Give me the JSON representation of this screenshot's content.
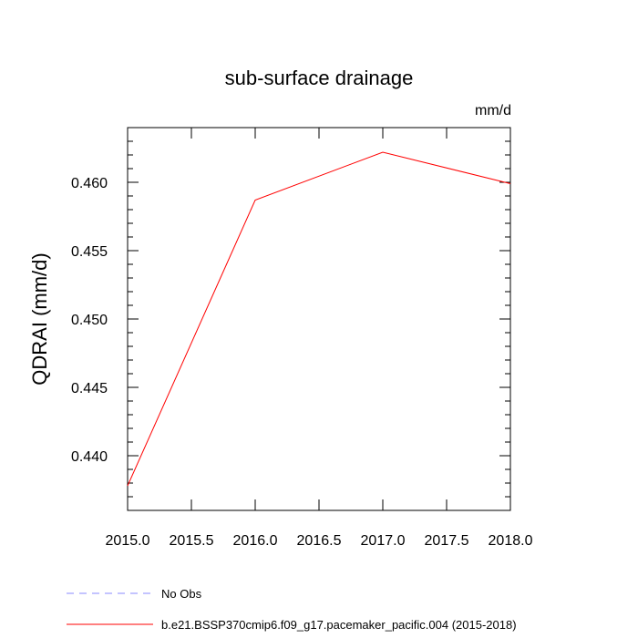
{
  "chart_data": {
    "type": "line",
    "title": "sub-surface drainage",
    "units_label": "mm/d",
    "ylabel": "QDRAI  (mm/d)",
    "xlabel": "",
    "xlim": [
      2015.0,
      2018.0
    ],
    "ylim": [
      0.436,
      0.464
    ],
    "xticks": [
      2015.0,
      2015.5,
      2016.0,
      2016.5,
      2017.0,
      2017.5,
      2018.0
    ],
    "xtick_labels": [
      "2015.0",
      "2015.5",
      "2016.0",
      "2016.5",
      "2017.0",
      "2017.5",
      "2018.0"
    ],
    "yticks": [
      0.44,
      0.445,
      0.45,
      0.455,
      0.46
    ],
    "ytick_labels": [
      "0.440",
      "0.445",
      "0.450",
      "0.455",
      "0.460"
    ],
    "grid": false,
    "legend_position": "bottom",
    "series": [
      {
        "name": "b.e21.BSSP370cmip6.f09_g17.pacemaker_pacific.004 (2015-2018)",
        "color": "#ff0000",
        "style": "solid",
        "x": [
          2015.0,
          2016.0,
          2017.0,
          2018.0
        ],
        "y": [
          0.4378,
          0.4587,
          0.4622,
          0.4599
        ]
      }
    ],
    "legend": [
      {
        "label": "No Obs",
        "color": "#8888ff",
        "style": "dashed"
      },
      {
        "label": "b.e21.BSSP370cmip6.f09_g17.pacemaker_pacific.004 (2015-2018)",
        "color": "#ff0000",
        "style": "solid"
      }
    ]
  }
}
